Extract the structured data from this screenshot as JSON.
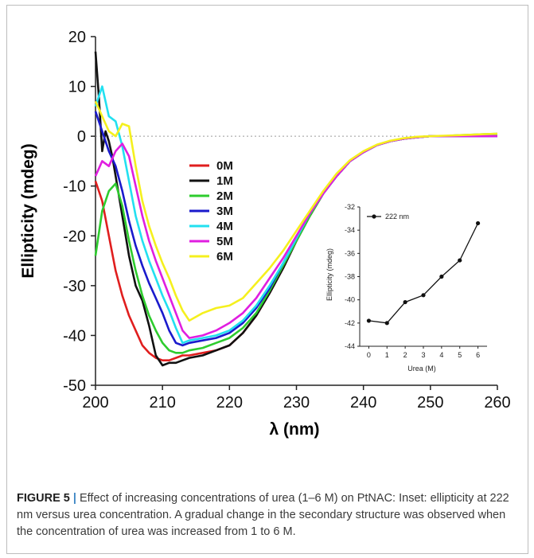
{
  "chart_data": [
    {
      "type": "line",
      "xlabel": "λ (nm)",
      "ylabel": "Ellipticity (mdeg)",
      "xlim": [
        200,
        260
      ],
      "ylim": [
        -50,
        20
      ],
      "xticks": [
        "200",
        "210",
        "220",
        "230",
        "240",
        "250",
        "260"
      ],
      "yticks": [
        "20",
        "10",
        "0",
        "-10",
        "-20",
        "-30",
        "-40",
        "-50"
      ],
      "zero_line": true,
      "legend_position": "center",
      "series": [
        {
          "name": "0M",
          "color": "#e01e1e",
          "x": [
            200,
            201,
            202,
            203,
            204,
            205,
            206,
            207,
            208,
            209,
            210,
            211,
            212,
            213,
            214,
            216,
            218,
            220,
            222,
            224,
            226,
            228,
            230,
            232,
            234,
            236,
            238,
            240,
            242,
            244,
            246,
            248,
            250,
            252,
            254,
            256,
            258,
            260
          ],
          "y": [
            -9,
            -13,
            -20,
            -27,
            -32,
            -36,
            -39,
            -42,
            -43.5,
            -44.5,
            -45,
            -45,
            -44.5,
            -44,
            -44,
            -43.5,
            -43,
            -42,
            -39.5,
            -36,
            -31.5,
            -26.5,
            -21,
            -16,
            -11.5,
            -8,
            -5,
            -3.2,
            -1.8,
            -1,
            -0.5,
            -0.2,
            0,
            0,
            0,
            0,
            0,
            0
          ]
        },
        {
          "name": "1M",
          "color": "#111111",
          "x": [
            200,
            200.5,
            201,
            201.5,
            202,
            202.5,
            203,
            204,
            205,
            206,
            207,
            208,
            209,
            210,
            211,
            212,
            213,
            214,
            216,
            218,
            220,
            222,
            224,
            226,
            228,
            230,
            232,
            234,
            236,
            238,
            240,
            242,
            244,
            246,
            248,
            250,
            252,
            254,
            256,
            258,
            260
          ],
          "y": [
            17,
            8,
            -3,
            1,
            -1,
            -4,
            -8,
            -16,
            -24,
            -30,
            -33,
            -38,
            -44,
            -46,
            -45.5,
            -45.5,
            -45,
            -44.5,
            -44,
            -43,
            -42,
            -39.5,
            -36,
            -31.5,
            -26.5,
            -21,
            -16,
            -11.5,
            -8,
            -5,
            -3.2,
            -1.8,
            -1,
            -0.5,
            -0.2,
            0,
            0,
            0,
            0,
            0,
            0
          ]
        },
        {
          "name": "2M",
          "color": "#2ecc2e",
          "x": [
            200,
            201,
            202,
            203,
            204,
            205,
            206,
            207,
            208,
            209,
            210,
            211,
            212,
            213,
            214,
            216,
            218,
            220,
            222,
            224,
            226,
            228,
            230,
            232,
            234,
            236,
            238,
            240,
            242,
            244,
            246,
            248,
            250,
            252,
            254,
            256,
            258,
            260
          ],
          "y": [
            -24,
            -15,
            -11,
            -9.5,
            -14,
            -21,
            -27,
            -32,
            -36,
            -39,
            -41.5,
            -43,
            -43.5,
            -43.5,
            -43,
            -42.5,
            -41.5,
            -40.5,
            -38.5,
            -35.5,
            -31,
            -26,
            -21,
            -16,
            -11.5,
            -8,
            -5,
            -3.2,
            -1.8,
            -1,
            -0.5,
            -0.2,
            0,
            0,
            0.2,
            0.3,
            0.4,
            0.5
          ]
        },
        {
          "name": "3M",
          "color": "#1a1acc",
          "x": [
            200,
            201,
            202,
            203,
            204,
            205,
            206,
            207,
            208,
            209,
            210,
            211,
            212,
            213,
            214,
            216,
            218,
            220,
            222,
            224,
            226,
            228,
            230,
            232,
            234,
            236,
            238,
            240,
            242,
            244,
            246,
            248,
            250,
            252,
            254,
            256,
            258,
            260
          ],
          "y": [
            5,
            1,
            -3,
            -6,
            -11,
            -17,
            -22,
            -26,
            -29.5,
            -32.5,
            -35.5,
            -39,
            -41.5,
            -42,
            -41.5,
            -41,
            -40.5,
            -39.5,
            -37.5,
            -34.5,
            -30.5,
            -25.5,
            -20.5,
            -15.5,
            -11.5,
            -8,
            -5,
            -3.2,
            -1.8,
            -1,
            -0.5,
            -0.2,
            0,
            0,
            0,
            0,
            0,
            0
          ]
        },
        {
          "name": "4M",
          "color": "#22e0f0",
          "x": [
            200,
            201,
            202,
            203,
            204,
            205,
            206,
            207,
            208,
            209,
            210,
            211,
            212,
            213,
            214,
            216,
            218,
            220,
            222,
            224,
            226,
            228,
            230,
            232,
            234,
            236,
            238,
            240,
            242,
            244,
            246,
            248,
            250,
            252,
            254,
            256,
            258,
            260
          ],
          "y": [
            6,
            10,
            4,
            3,
            -2,
            -9,
            -16,
            -21,
            -25,
            -28.5,
            -32,
            -35,
            -38.5,
            -41.5,
            -41,
            -40.5,
            -40,
            -39,
            -37,
            -34,
            -30,
            -25.5,
            -20.5,
            -15.5,
            -11.5,
            -8,
            -5,
            -3.2,
            -1.8,
            -1,
            -0.5,
            -0.2,
            0,
            0,
            0,
            0,
            0,
            0
          ]
        },
        {
          "name": "5M",
          "color": "#e01ee0",
          "x": [
            200,
            201,
            202,
            203,
            204,
            205,
            206,
            207,
            208,
            209,
            210,
            211,
            212,
            213,
            214,
            216,
            218,
            220,
            222,
            224,
            226,
            228,
            230,
            232,
            234,
            236,
            238,
            240,
            242,
            244,
            246,
            248,
            250,
            252,
            254,
            256,
            258,
            260
          ],
          "y": [
            -8,
            -5,
            -6,
            -3,
            -1.5,
            -4,
            -10,
            -16,
            -21,
            -25,
            -28.5,
            -32,
            -35.5,
            -39,
            -40.5,
            -40,
            -39,
            -37.5,
            -35.5,
            -32.5,
            -28.5,
            -24.5,
            -20,
            -15.5,
            -11.5,
            -8,
            -5,
            -3.2,
            -1.8,
            -1,
            -0.5,
            -0.2,
            0,
            0,
            0,
            0,
            0,
            0
          ]
        },
        {
          "name": "6M",
          "color": "#f5f01e",
          "x": [
            200,
            201,
            202,
            203,
            204,
            205,
            206,
            207,
            208,
            209,
            210,
            211,
            212,
            213,
            214,
            216,
            218,
            220,
            222,
            224,
            226,
            228,
            230,
            232,
            234,
            236,
            238,
            240,
            242,
            244,
            246,
            248,
            250,
            252,
            254,
            256,
            258,
            260
          ],
          "y": [
            7,
            4,
            1,
            0,
            2.5,
            2,
            -6,
            -13,
            -18,
            -22,
            -25.5,
            -28.5,
            -32,
            -35,
            -37,
            -35.5,
            -34.5,
            -34,
            -32.5,
            -29.5,
            -26.5,
            -23,
            -19,
            -15,
            -11,
            -7.5,
            -4.8,
            -3,
            -1.7,
            -0.9,
            -0.4,
            -0.1,
            0,
            0.1,
            0.2,
            0.3,
            0.4,
            0.5
          ]
        }
      ]
    },
    {
      "type": "line",
      "xlabel": "Urea (M)",
      "ylabel": "Ellipticity (mdeg)",
      "xlim": [
        -0.5,
        6.5
      ],
      "ylim": [
        -44,
        -32
      ],
      "xticks": [
        "0",
        "1",
        "2",
        "3",
        "4",
        "5",
        "6"
      ],
      "yticks": [
        "-32",
        "-34",
        "-36",
        "-38",
        "-40",
        "-42",
        "-44"
      ],
      "legend_position": "top-left",
      "series": [
        {
          "name": "222 nm",
          "color": "#111111",
          "x": [
            0,
            1,
            2,
            3,
            4,
            5,
            6
          ],
          "y": [
            -41.8,
            -42,
            -40.2,
            -39.6,
            -38,
            -36.6,
            -33.4
          ]
        }
      ]
    }
  ],
  "caption": {
    "figure_label": "FIGURE 5",
    "separator": "|",
    "text": " Effect of increasing concentrations of urea (1–6 M) on PtNAC: Inset: ellipticity at 222 nm versus urea concentration. A gradual change in the secondary structure was observed when the concentration of urea was increased from 1 to 6 M."
  }
}
